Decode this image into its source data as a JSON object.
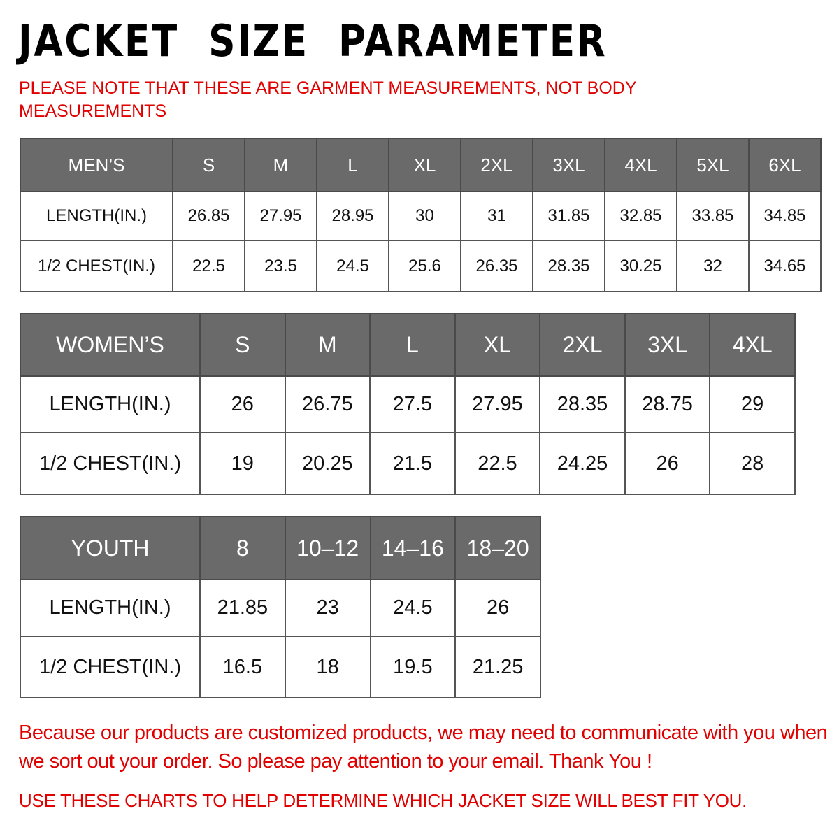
{
  "title": "JACKET  SIZE  PARAMETER",
  "note": "PLEASE NOTE THAT THESE ARE GARMENT MEASUREMENTS, NOT BODY MEASUREMENTS",
  "tables": [
    {
      "id": "men",
      "header": [
        "MEN’S",
        "S",
        "M",
        "L",
        "XL",
        "2XL",
        "3XL",
        "4XL",
        "5XL",
        "6XL"
      ],
      "rows": [
        [
          "LENGTH(IN.)",
          "26.85",
          "27.95",
          "28.95",
          "30",
          "31",
          "31.85",
          "32.85",
          "33.85",
          "34.85"
        ],
        [
          "1/2 CHEST(IN.)",
          "22.5",
          "23.5",
          "24.5",
          "25.6",
          "26.35",
          "28.35",
          "30.25",
          "32",
          "34.65"
        ]
      ]
    },
    {
      "id": "women",
      "header": [
        "WOMEN’S",
        "S",
        "M",
        "L",
        "XL",
        "2XL",
        "3XL",
        "4XL"
      ],
      "rows": [
        [
          "LENGTH(IN.)",
          "26",
          "26.75",
          "27.5",
          "27.95",
          "28.35",
          "28.75",
          "29"
        ],
        [
          "1/2 CHEST(IN.)",
          "19",
          "20.25",
          "21.5",
          "22.5",
          "24.25",
          "26",
          "28"
        ]
      ]
    },
    {
      "id": "youth",
      "header": [
        "YOUTH",
        "8",
        "10–12",
        "14–16",
        "18–20"
      ],
      "rows": [
        [
          "LENGTH(IN.)",
          "21.85",
          "23",
          "24.5",
          "26"
        ],
        [
          "1/2 CHEST(IN.)",
          "16.5",
          "18",
          "19.5",
          "21.25"
        ]
      ]
    }
  ],
  "footer_message": "Because our products are customized products, we may need to communicate with you when we sort out your order. So please pay attention to your email. Thank You !",
  "footer_instruction": "USE THESE CHARTS TO HELP DETERMINE WHICH JACKET SIZE WILL BEST FIT YOU.",
  "colors": {
    "header_bg": "#6a6a6a",
    "accent_red": "#e00000"
  }
}
